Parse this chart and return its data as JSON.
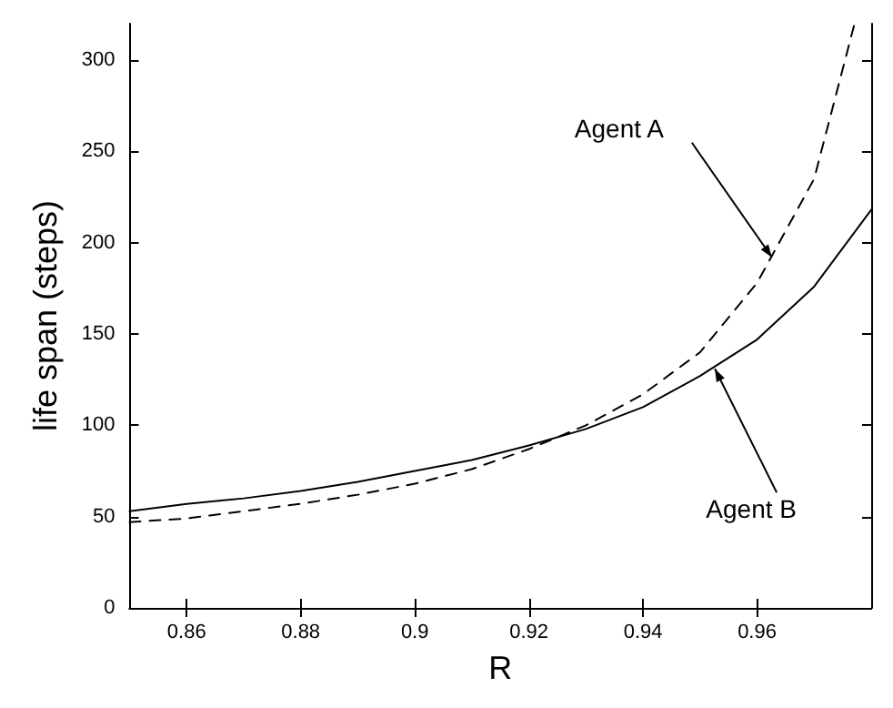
{
  "chart_data": {
    "type": "line",
    "xlabel": "R",
    "ylabel": "life span (steps)",
    "xlim": [
      0.85,
      0.98
    ],
    "xticks": [
      0.86,
      0.88,
      {
        "value": 0.9,
        "label": "0.9"
      },
      0.92,
      0.94,
      0.96
    ],
    "ylim": [
      0,
      320
    ],
    "yticks": [
      0,
      50,
      100,
      150,
      200,
      250,
      300
    ],
    "grid": false,
    "marker": "none",
    "series": [
      {
        "color": "#000000",
        "line_style": "dashed",
        "x": [
          0.85,
          0.86,
          0.87,
          0.88,
          0.89,
          0.9,
          0.91,
          0.92,
          0.93,
          0.94,
          0.95,
          0.96,
          0.97,
          0.977
        ],
        "values": [
          47,
          49,
          53,
          57,
          62,
          68,
          76,
          87,
          100,
          117,
          140,
          178,
          235,
          319
        ]
      },
      {
        "color": "#000000",
        "line_style": "solid",
        "x": [
          0.85,
          0.86,
          0.87,
          0.88,
          0.89,
          0.9,
          0.91,
          0.92,
          0.93,
          0.94,
          0.95,
          0.96,
          0.97,
          0.98
        ],
        "values": [
          53,
          57,
          60,
          64,
          69,
          75,
          81,
          89,
          98,
          110,
          127,
          147,
          176,
          218
        ]
      }
    ],
    "annotations": [
      {
        "text": "Agent A",
        "x": 0.9626,
        "y": 192
      },
      {
        "text": "Agent B",
        "x": 0.9526,
        "y": 131
      }
    ]
  }
}
